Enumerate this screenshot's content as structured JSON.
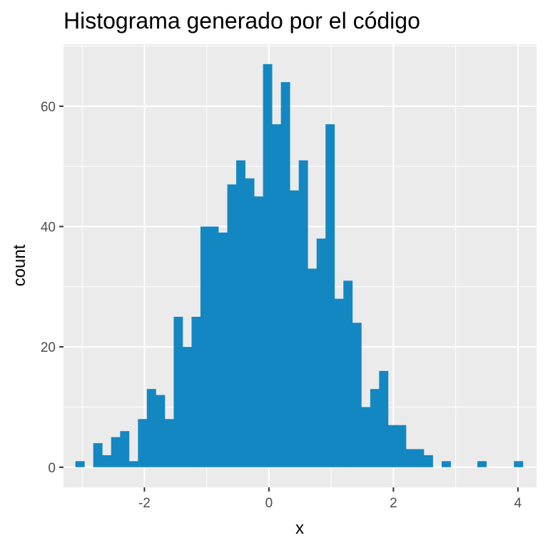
{
  "chart_data": {
    "type": "bar",
    "title": "Histograma generado por el código",
    "xlabel": "x",
    "ylabel": "count",
    "bin_width": 0.1435,
    "xlim": [
      -3.3,
      4.3
    ],
    "ylim": [
      -3.35,
      70.3
    ],
    "x_ticks": [
      -2,
      0,
      2,
      4
    ],
    "y_ticks": [
      0,
      20,
      40,
      60
    ],
    "x_tick_labels": [
      "-2",
      "0",
      "2",
      "4"
    ],
    "y_tick_labels": [
      "0",
      "20",
      "40",
      "60"
    ],
    "grid": true,
    "fill_color": "#1387C2",
    "panel_color": "#EBEBEB",
    "bins": [
      {
        "x": -3.037,
        "count": 1
      },
      {
        "x": -2.75,
        "count": 4
      },
      {
        "x": -2.606,
        "count": 2
      },
      {
        "x": -2.463,
        "count": 5
      },
      {
        "x": -2.319,
        "count": 6
      },
      {
        "x": -2.176,
        "count": 1
      },
      {
        "x": -2.032,
        "count": 8
      },
      {
        "x": -1.889,
        "count": 13
      },
      {
        "x": -1.745,
        "count": 12
      },
      {
        "x": -1.602,
        "count": 8
      },
      {
        "x": -1.458,
        "count": 25
      },
      {
        "x": -1.315,
        "count": 20
      },
      {
        "x": -1.171,
        "count": 25
      },
      {
        "x": -1.028,
        "count": 40
      },
      {
        "x": -0.884,
        "count": 40
      },
      {
        "x": -0.741,
        "count": 39
      },
      {
        "x": -0.597,
        "count": 47
      },
      {
        "x": -0.454,
        "count": 51
      },
      {
        "x": -0.31,
        "count": 48
      },
      {
        "x": -0.167,
        "count": 45
      },
      {
        "x": -0.023,
        "count": 67
      },
      {
        "x": 0.12,
        "count": 57
      },
      {
        "x": 0.264,
        "count": 64
      },
      {
        "x": 0.407,
        "count": 46
      },
      {
        "x": 0.551,
        "count": 51
      },
      {
        "x": 0.694,
        "count": 33
      },
      {
        "x": 0.838,
        "count": 38
      },
      {
        "x": 0.981,
        "count": 57
      },
      {
        "x": 1.125,
        "count": 28
      },
      {
        "x": 1.268,
        "count": 31
      },
      {
        "x": 1.412,
        "count": 24
      },
      {
        "x": 1.555,
        "count": 10
      },
      {
        "x": 1.699,
        "count": 13
      },
      {
        "x": 1.842,
        "count": 16
      },
      {
        "x": 1.986,
        "count": 7
      },
      {
        "x": 2.129,
        "count": 7
      },
      {
        "x": 2.273,
        "count": 3
      },
      {
        "x": 2.416,
        "count": 3
      },
      {
        "x": 2.56,
        "count": 2
      },
      {
        "x": 2.847,
        "count": 1
      },
      {
        "x": 3.421,
        "count": 1
      },
      {
        "x": 4.008,
        "count": 1
      }
    ]
  }
}
